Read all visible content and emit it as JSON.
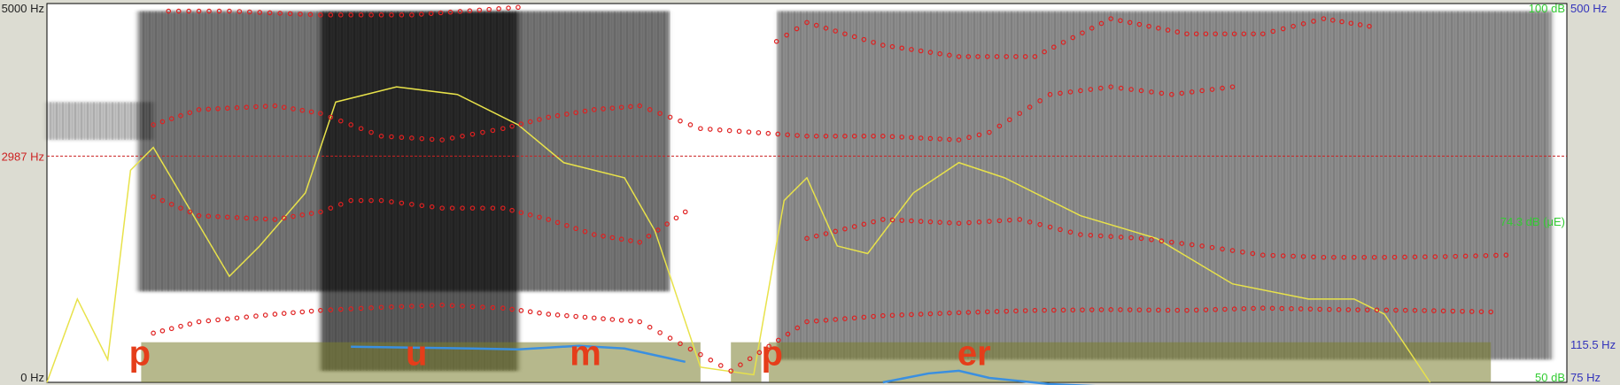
{
  "chart_data": {
    "type": "spectrogram",
    "title": "",
    "frequency_axis": {
      "unit": "Hz",
      "range": [
        0,
        5000
      ],
      "tick_labels": {
        "max": "5000 Hz",
        "min": "0 Hz"
      },
      "cursor_value": 2987,
      "cursor_label": "2987 Hz"
    },
    "intensity_axis": {
      "unit": "dB",
      "range": [
        50,
        100
      ],
      "tick_labels": {
        "max": "100 dB",
        "mid": "74.3 dB (μE)",
        "min": "50 dB"
      }
    },
    "pitch_axis": {
      "unit": "Hz",
      "range": [
        75,
        500
      ],
      "tick_labels": {
        "max": "500 Hz",
        "mid": "115.5 Hz",
        "min": "75 Hz"
      }
    },
    "segments": [
      {
        "label": "p",
        "x": 0.054
      },
      {
        "label": "u",
        "x": 0.236
      },
      {
        "label": "m",
        "x": 0.344
      },
      {
        "label": "p",
        "x": 0.47
      },
      {
        "label": "er",
        "x": 0.599
      }
    ],
    "voiced_regions": [
      [
        0.062,
        0.43
      ],
      [
        0.45,
        0.47
      ],
      [
        0.475,
        0.95
      ]
    ],
    "silence_regions": [
      [
        0.41,
        0.48
      ]
    ],
    "dark_bands": [
      {
        "t": [
          0.06,
          0.41
        ],
        "f": [
          1200,
          4900
        ],
        "strength": 0.55
      },
      {
        "t": [
          0.18,
          0.31
        ],
        "f": [
          150,
          4900
        ],
        "strength": 0.65
      },
      {
        "t": [
          0.48,
          0.99
        ],
        "f": [
          300,
          4900
        ],
        "strength": 0.45
      },
      {
        "t": [
          0.0,
          0.07
        ],
        "f": [
          3200,
          3700
        ],
        "strength": 0.25
      }
    ],
    "formants": [
      {
        "name": "F1",
        "points": [
          [
            0.07,
            650
          ],
          [
            0.1,
            800
          ],
          [
            0.15,
            900
          ],
          [
            0.18,
            950
          ],
          [
            0.22,
            990
          ],
          [
            0.26,
            1020
          ],
          [
            0.3,
            980
          ],
          [
            0.33,
            900
          ],
          [
            0.36,
            850
          ],
          [
            0.39,
            800
          ],
          [
            0.45,
            150
          ],
          [
            0.5,
            800
          ],
          [
            0.55,
            880
          ],
          [
            0.6,
            920
          ],
          [
            0.65,
            950
          ],
          [
            0.7,
            960
          ],
          [
            0.75,
            950
          ],
          [
            0.8,
            980
          ],
          [
            0.85,
            960
          ],
          [
            0.9,
            950
          ],
          [
            0.95,
            930
          ]
        ]
      },
      {
        "name": "F2",
        "points": [
          [
            0.07,
            2450
          ],
          [
            0.1,
            2200
          ],
          [
            0.15,
            2150
          ],
          [
            0.18,
            2250
          ],
          [
            0.2,
            2400
          ],
          [
            0.22,
            2400
          ],
          [
            0.26,
            2300
          ],
          [
            0.3,
            2300
          ],
          [
            0.33,
            2150
          ],
          [
            0.36,
            1950
          ],
          [
            0.39,
            1850
          ],
          [
            0.42,
            2250
          ],
          [
            0.5,
            1900
          ],
          [
            0.55,
            2150
          ],
          [
            0.6,
            2100
          ],
          [
            0.64,
            2150
          ],
          [
            0.68,
            1950
          ],
          [
            0.72,
            1900
          ],
          [
            0.76,
            1800
          ],
          [
            0.8,
            1680
          ],
          [
            0.84,
            1650
          ],
          [
            0.88,
            1650
          ],
          [
            0.92,
            1660
          ],
          [
            0.96,
            1680
          ]
        ]
      },
      {
        "name": "F3",
        "points": [
          [
            0.07,
            3400
          ],
          [
            0.1,
            3600
          ],
          [
            0.15,
            3650
          ],
          [
            0.18,
            3550
          ],
          [
            0.22,
            3250
          ],
          [
            0.26,
            3200
          ],
          [
            0.3,
            3350
          ],
          [
            0.33,
            3500
          ],
          [
            0.36,
            3600
          ],
          [
            0.39,
            3650
          ],
          [
            0.43,
            3350
          ],
          [
            0.5,
            3250
          ],
          [
            0.55,
            3250
          ],
          [
            0.6,
            3200
          ],
          [
            0.62,
            3300
          ],
          [
            0.66,
            3800
          ],
          [
            0.7,
            3900
          ],
          [
            0.74,
            3800
          ],
          [
            0.78,
            3900
          ]
        ]
      },
      {
        "name": "F4",
        "points": [
          [
            0.08,
            4900
          ],
          [
            0.12,
            4900
          ],
          [
            0.18,
            4850
          ],
          [
            0.24,
            4850
          ],
          [
            0.31,
            4950
          ],
          [
            0.48,
            4500
          ],
          [
            0.5,
            4750
          ],
          [
            0.55,
            4450
          ],
          [
            0.6,
            4300
          ],
          [
            0.65,
            4300
          ],
          [
            0.7,
            4800
          ],
          [
            0.75,
            4600
          ],
          [
            0.8,
            4600
          ],
          [
            0.84,
            4800
          ],
          [
            0.87,
            4700
          ]
        ]
      }
    ],
    "pitch_contour": [
      [
        0.2,
        115
      ],
      [
        0.24,
        114
      ],
      [
        0.28,
        113
      ],
      [
        0.31,
        112
      ],
      [
        0.33,
        114
      ],
      [
        0.35,
        116
      ],
      [
        0.38,
        113
      ],
      [
        0.42,
        98
      ],
      [
        0.55,
        75
      ],
      [
        0.58,
        85
      ],
      [
        0.6,
        88
      ],
      [
        0.62,
        80
      ],
      [
        0.66,
        73
      ],
      [
        0.7,
        70
      ],
      [
        0.72,
        68
      ]
    ],
    "intensity_contour": [
      [
        0.0,
        50
      ],
      [
        0.02,
        61
      ],
      [
        0.04,
        53
      ],
      [
        0.055,
        78
      ],
      [
        0.07,
        81
      ],
      [
        0.12,
        64
      ],
      [
        0.14,
        68
      ],
      [
        0.17,
        75
      ],
      [
        0.19,
        87
      ],
      [
        0.23,
        89
      ],
      [
        0.27,
        88
      ],
      [
        0.31,
        84
      ],
      [
        0.34,
        79
      ],
      [
        0.38,
        77
      ],
      [
        0.4,
        70
      ],
      [
        0.43,
        52
      ],
      [
        0.465,
        51
      ],
      [
        0.485,
        74
      ],
      [
        0.5,
        77
      ],
      [
        0.52,
        68
      ],
      [
        0.54,
        67
      ],
      [
        0.57,
        75
      ],
      [
        0.6,
        79
      ],
      [
        0.63,
        77
      ],
      [
        0.68,
        72
      ],
      [
        0.73,
        69
      ],
      [
        0.78,
        63
      ],
      [
        0.83,
        61
      ],
      [
        0.86,
        61
      ],
      [
        0.88,
        59
      ],
      [
        0.91,
        50
      ]
    ]
  }
}
